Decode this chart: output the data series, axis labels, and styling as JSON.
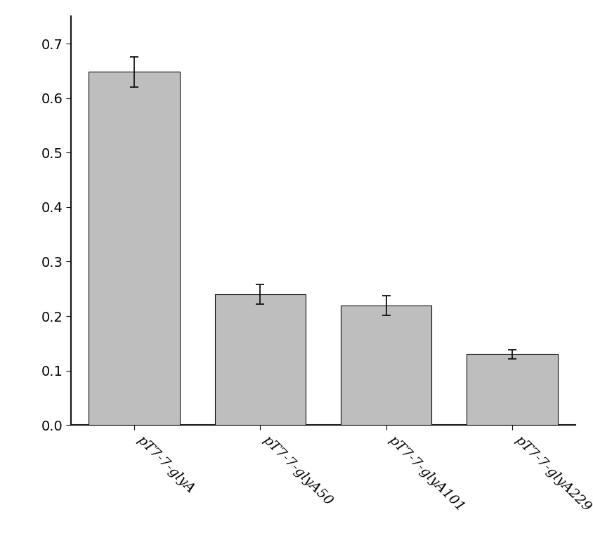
{
  "categories": [
    "pT7-7-glyA",
    "pT7-7-glyA50",
    "pT7-7-glyA101",
    "pT7-7-glyA229"
  ],
  "values": [
    0.648,
    0.24,
    0.22,
    0.13
  ],
  "errors": [
    0.028,
    0.018,
    0.018,
    0.008
  ],
  "bar_color": "#BEBEBE",
  "bar_edge_color": "#111111",
  "ylim": [
    0.0,
    0.75
  ],
  "yticks": [
    0.0,
    0.1,
    0.2,
    0.3,
    0.4,
    0.5,
    0.6,
    0.7
  ],
  "bar_width": 0.72,
  "background_color": "#ffffff",
  "capsize": 4,
  "elinewidth": 1.3,
  "ecapthick": 1.3,
  "spine_color": "#111111",
  "tick_fontsize": 14,
  "xlabel_fontsize": 14,
  "figsize": [
    8.44,
    7.76
  ],
  "dpi": 100
}
